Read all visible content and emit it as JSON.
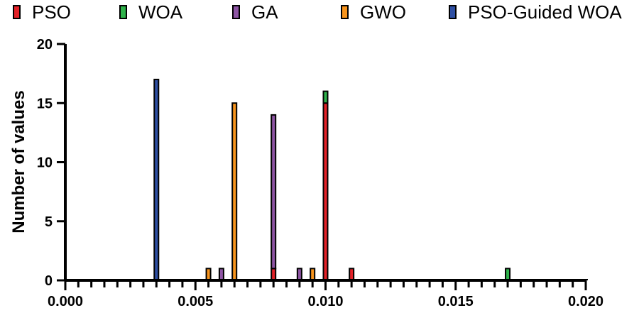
{
  "chart_data": {
    "type": "bar",
    "stacked": true,
    "title": "",
    "xlabel": "",
    "ylabel": "Number of values",
    "xlim": [
      0.0,
      0.02
    ],
    "ylim": [
      0,
      20
    ],
    "bin_width": 0.00025,
    "x_tick_labels": [
      "0.000",
      "0.005",
      "0.010",
      "0.015",
      "0.020"
    ],
    "x_tick_values": [
      0.0,
      0.005,
      0.01,
      0.015,
      0.02
    ],
    "y_tick_labels": [
      "0",
      "5",
      "10",
      "15",
      "20"
    ],
    "y_tick_values": [
      0,
      5,
      10,
      15,
      20
    ],
    "legend_placement": "top",
    "colors": {
      "PSO": "#e32228",
      "WOA": "#2eb24a",
      "GA": "#8e55a4",
      "GWO": "#f7941d",
      "PSO-Guided WOA": "#2e4fa3"
    },
    "series": [
      {
        "name": "PSO",
        "x": [
          0.008,
          0.01,
          0.011
        ],
        "values": [
          1,
          15,
          1
        ]
      },
      {
        "name": "WOA",
        "x": [
          0.01,
          0.017
        ],
        "values": [
          1,
          1
        ]
      },
      {
        "name": "GA",
        "x": [
          0.006,
          0.008,
          0.009
        ],
        "values": [
          1,
          13,
          1
        ]
      },
      {
        "name": "GWO",
        "x": [
          0.0055,
          0.0065,
          0.0095
        ],
        "values": [
          1,
          15,
          1
        ]
      },
      {
        "name": "PSO-Guided WOA",
        "x": [
          0.0035
        ],
        "values": [
          17
        ]
      }
    ]
  }
}
